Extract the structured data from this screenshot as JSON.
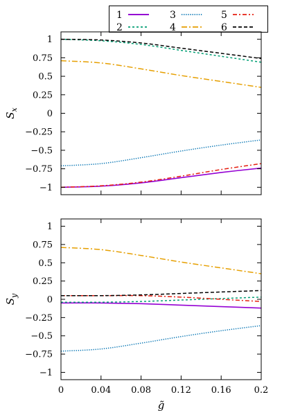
{
  "chart_data": [
    {
      "type": "line",
      "panel": "top",
      "ylabel": "S_x",
      "xlabel": "",
      "xlim": [
        0,
        0.2
      ],
      "ylim": [
        -1.1,
        1.1
      ],
      "xticks": [
        0,
        0.04,
        0.08,
        0.12,
        0.16,
        0.2
      ],
      "xtick_labels": [],
      "yticks": [
        -1,
        -0.75,
        -0.5,
        -0.25,
        0,
        0.25,
        0.5,
        0.75,
        1
      ],
      "ytick_labels": [
        "−1",
        "−0.75",
        "−0.5",
        "−0.25",
        "0",
        "0.25",
        "0.5",
        "0.75",
        "1"
      ],
      "grid": false,
      "legend": "top-right, above plot",
      "series": [
        {
          "name": "1",
          "color": "#9400d3",
          "dash": "solid",
          "x": [
            0,
            0.04,
            0.08,
            0.12,
            0.16,
            0.2
          ],
          "y": [
            -1.0,
            -0.985,
            -0.94,
            -0.87,
            -0.8,
            -0.74
          ]
        },
        {
          "name": "2",
          "color": "#009e73",
          "dash": "dashed",
          "x": [
            0,
            0.04,
            0.08,
            0.12,
            0.16,
            0.2
          ],
          "y": [
            1.0,
            0.98,
            0.93,
            0.85,
            0.77,
            0.69
          ]
        },
        {
          "name": "3",
          "color": "#0072b2",
          "dash": "dotted",
          "x": [
            0,
            0.04,
            0.08,
            0.12,
            0.16,
            0.2
          ],
          "y": [
            -0.71,
            -0.68,
            -0.6,
            -0.51,
            -0.43,
            -0.36
          ]
        },
        {
          "name": "4",
          "color": "#e69f00",
          "dash": "dashdot",
          "x": [
            0,
            0.04,
            0.08,
            0.12,
            0.16,
            0.2
          ],
          "y": [
            0.71,
            0.68,
            0.6,
            0.51,
            0.43,
            0.35
          ]
        },
        {
          "name": "5",
          "color": "#e51e10",
          "dash": "dashdot2",
          "x": [
            0,
            0.04,
            0.08,
            0.12,
            0.16,
            0.2
          ],
          "y": [
            -1.0,
            -0.98,
            -0.93,
            -0.85,
            -0.76,
            -0.68
          ]
        },
        {
          "name": "6",
          "color": "#000000",
          "dash": "longdash",
          "x": [
            0,
            0.04,
            0.08,
            0.12,
            0.16,
            0.2
          ],
          "y": [
            1.0,
            0.99,
            0.95,
            0.88,
            0.81,
            0.74
          ]
        }
      ]
    },
    {
      "type": "line",
      "panel": "bottom",
      "ylabel": "S_y",
      "xlabel": "g̃",
      "xlim": [
        0,
        0.2
      ],
      "ylim": [
        -1.1,
        1.1
      ],
      "xticks": [
        0,
        0.04,
        0.08,
        0.12,
        0.16,
        0.2
      ],
      "xtick_labels": [
        "0",
        "0.04",
        "0.08",
        "0.12",
        "0.16",
        "0.2"
      ],
      "yticks": [
        -1,
        -0.75,
        -0.5,
        -0.25,
        0,
        0.25,
        0.5,
        0.75,
        1
      ],
      "ytick_labels": [
        "−1",
        "−0.75",
        "−0.5",
        "−0.25",
        "0",
        "0.25",
        "0.5",
        "0.75",
        "1"
      ],
      "grid": false,
      "series": [
        {
          "name": "1",
          "color": "#9400d3",
          "dash": "solid",
          "x": [
            0,
            0.04,
            0.08,
            0.12,
            0.16,
            0.2
          ],
          "y": [
            -0.05,
            -0.05,
            -0.06,
            -0.08,
            -0.1,
            -0.12
          ]
        },
        {
          "name": "2",
          "color": "#009e73",
          "dash": "dashed",
          "x": [
            0,
            0.04,
            0.08,
            0.12,
            0.16,
            0.2
          ],
          "y": [
            -0.04,
            -0.04,
            -0.03,
            -0.01,
            0.01,
            0.03
          ]
        },
        {
          "name": "3",
          "color": "#0072b2",
          "dash": "dotted",
          "x": [
            0,
            0.04,
            0.08,
            0.12,
            0.16,
            0.2
          ],
          "y": [
            -0.71,
            -0.68,
            -0.6,
            -0.51,
            -0.43,
            -0.36
          ]
        },
        {
          "name": "4",
          "color": "#e69f00",
          "dash": "dashdot",
          "x": [
            0,
            0.04,
            0.08,
            0.12,
            0.16,
            0.2
          ],
          "y": [
            0.71,
            0.68,
            0.6,
            0.51,
            0.43,
            0.35
          ]
        },
        {
          "name": "5",
          "color": "#e51e10",
          "dash": "dashdot2",
          "x": [
            0,
            0.04,
            0.08,
            0.12,
            0.16,
            0.2
          ],
          "y": [
            0.05,
            0.05,
            0.05,
            0.03,
            0.0,
            -0.03
          ]
        },
        {
          "name": "6",
          "color": "#000000",
          "dash": "longdash",
          "x": [
            0,
            0.04,
            0.08,
            0.12,
            0.16,
            0.2
          ],
          "y": [
            0.05,
            0.05,
            0.06,
            0.08,
            0.1,
            0.12
          ]
        }
      ]
    }
  ]
}
